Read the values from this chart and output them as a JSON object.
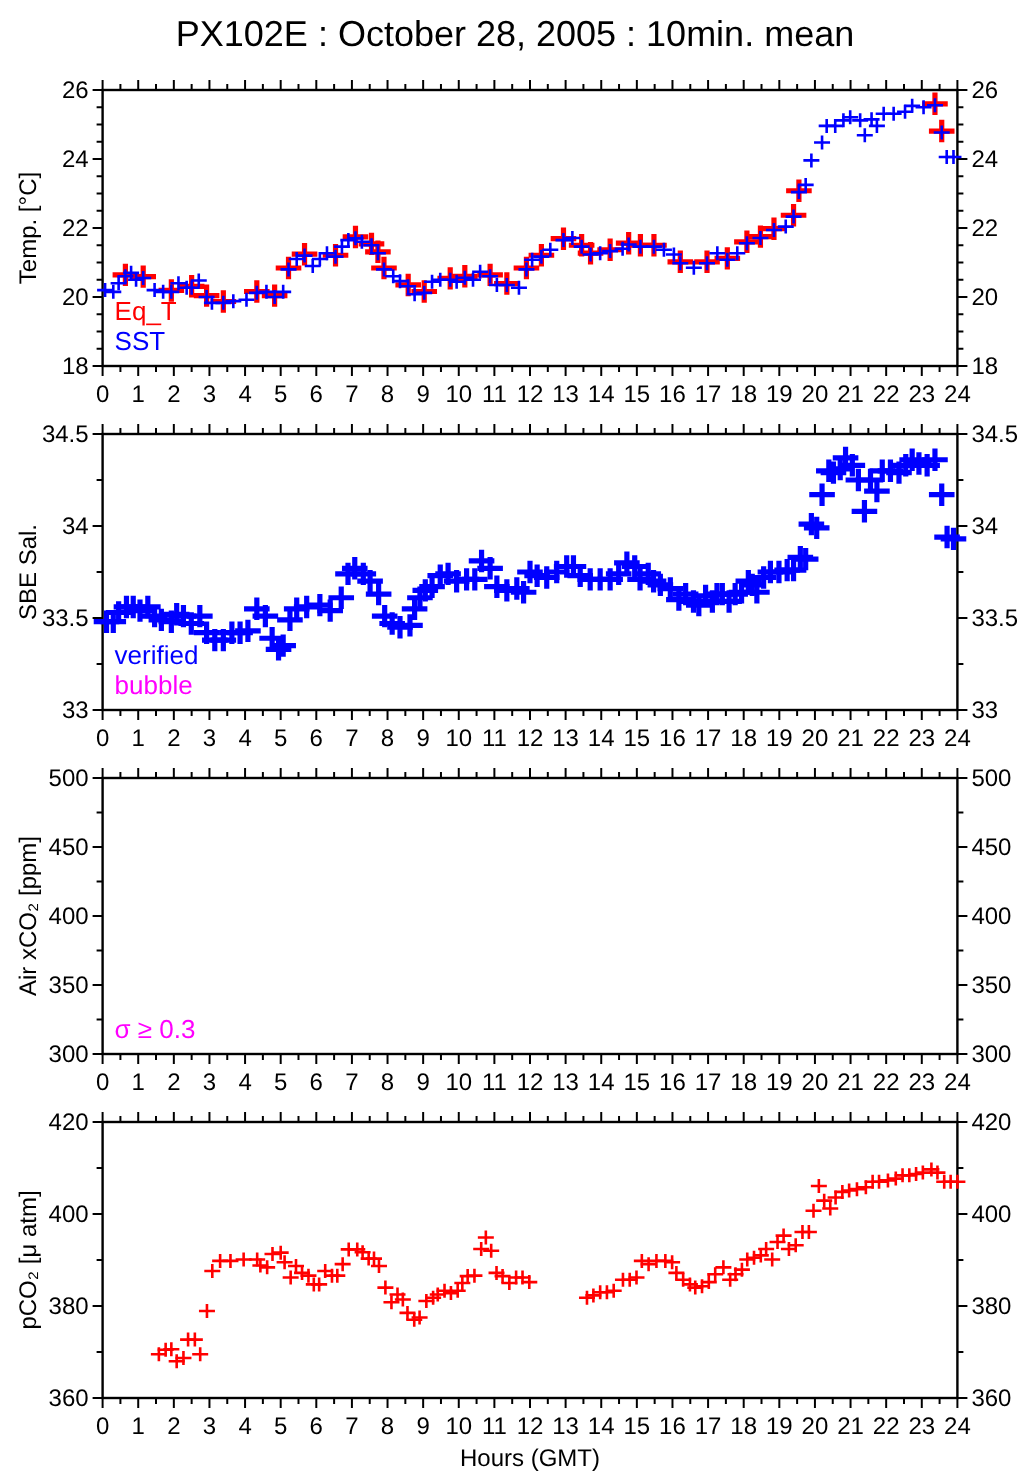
{
  "chart_data": [
    {
      "type": "scatter",
      "title": "PX102E : October 28, 2005 : 10min. mean",
      "ylabel": "Temp. [°C]",
      "marker": "cross",
      "legend": "bottom left",
      "xlim": [
        0,
        24
      ],
      "xticks": [
        0,
        {
          "value": 0.5,
          "label": null
        },
        1,
        {
          "value": 1.5,
          "label": null
        },
        2,
        {
          "value": 2.5,
          "label": null
        },
        3,
        {
          "value": 3.5,
          "label": null
        },
        4,
        {
          "value": 4.5,
          "label": null
        },
        5,
        {
          "value": 5.5,
          "label": null
        },
        6,
        {
          "value": 6.5,
          "label": null
        },
        7,
        {
          "value": 7.5,
          "label": null
        },
        8,
        {
          "value": 8.5,
          "label": null
        },
        9,
        {
          "value": 9.5,
          "label": null
        },
        10,
        {
          "value": 10.5,
          "label": null
        },
        11,
        {
          "value": 11.5,
          "label": null
        },
        12,
        {
          "value": 12.5,
          "label": null
        },
        13,
        {
          "value": 13.5,
          "label": null
        },
        14,
        {
          "value": 14.5,
          "label": null
        },
        15,
        {
          "value": 15.5,
          "label": null
        },
        16,
        {
          "value": 16.5,
          "label": null
        },
        17,
        {
          "value": 17.5,
          "label": null
        },
        18,
        {
          "value": 18.5,
          "label": null
        },
        19,
        {
          "value": 19.5,
          "label": null
        },
        20,
        {
          "value": 20.5,
          "label": null
        },
        21,
        {
          "value": 21.5,
          "label": null
        },
        22,
        {
          "value": 22.5,
          "label": null
        },
        23,
        {
          "value": 23.5,
          "label": null
        },
        24
      ],
      "ylim": [
        18,
        26
      ],
      "yticks": [
        18,
        {
          "value": 18.5,
          "label": null
        },
        {
          "value": 19,
          "label": null
        },
        {
          "value": 19.5,
          "label": null
        },
        20,
        {
          "value": 20.5,
          "label": null
        },
        {
          "value": 21,
          "label": null
        },
        {
          "value": 21.5,
          "label": null
        },
        22,
        {
          "value": 22.5,
          "label": null
        },
        {
          "value": 23,
          "label": null
        },
        {
          "value": 23.5,
          "label": null
        },
        24,
        {
          "value": 24.5,
          "label": null
        },
        {
          "value": 25,
          "label": null
        },
        {
          "value": 25.5,
          "label": null
        },
        26
      ],
      "y2lim": [
        18,
        26
      ],
      "y2ticks": [
        18,
        {
          "value": 18.5,
          "label": null
        },
        {
          "value": 19,
          "label": null
        },
        {
          "value": 19.5,
          "label": null
        },
        20,
        {
          "value": 20.5,
          "label": null
        },
        {
          "value": 21,
          "label": null
        },
        {
          "value": 21.5,
          "label": null
        },
        22,
        {
          "value": 22.5,
          "label": null
        },
        {
          "value": 23,
          "label": null
        },
        {
          "value": 23.5,
          "label": null
        },
        24,
        {
          "value": 24.5,
          "label": null
        },
        {
          "value": 25,
          "label": null
        },
        {
          "value": 25.5,
          "label": null
        },
        26
      ],
      "series": [
        {
          "name": "Eq_T",
          "color": "#ff0000",
          "x": [
            0.64,
            1.14,
            1.93,
            2.5,
            2.92,
            3.39,
            4.33,
            4.83,
            5.22,
            5.67,
            6.54,
            7.1,
            7.55,
            7.73,
            7.9,
            8.58,
            9.03,
            9.76,
            10.17,
            10.88,
            11.35,
            11.9,
            12.32,
            12.94,
            13.45,
            13.7,
            14.25,
            14.77,
            15.1,
            15.48,
            16.22,
            16.97,
            17.54,
            18.09,
            18.47,
            18.85,
            19.4,
            19.55,
            23.37,
            23.56
          ],
          "values": [
            20.64,
            20.59,
            20.19,
            20.31,
            20.04,
            19.87,
            20.16,
            20.04,
            20.84,
            21.24,
            21.21,
            21.74,
            21.54,
            21.31,
            20.84,
            20.35,
            20.16,
            20.54,
            20.6,
            20.64,
            20.39,
            20.84,
            21.21,
            21.69,
            21.5,
            21.27,
            21.37,
            21.56,
            21.5,
            21.5,
            21.02,
            21.02,
            21.12,
            21.6,
            21.75,
            21.98,
            22.37,
            23.08,
            25.6,
            24.81
          ]
        },
        {
          "name": "SST",
          "color": "#0000ff",
          "x": [
            0.07,
            0.3,
            0.45,
            0.64,
            0.8,
            0.94,
            1.14,
            1.46,
            1.7,
            1.93,
            2.13,
            2.36,
            2.5,
            2.7,
            2.92,
            3.07,
            3.39,
            3.67,
            4.04,
            4.33,
            4.6,
            4.83,
            5.07,
            5.22,
            5.45,
            5.67,
            5.9,
            6.1,
            6.3,
            6.54,
            6.72,
            6.9,
            7.1,
            7.28,
            7.55,
            7.73,
            7.9,
            8.16,
            8.35,
            8.58,
            8.76,
            9.03,
            9.25,
            9.48,
            9.76,
            9.94,
            10.17,
            10.4,
            10.6,
            10.88,
            11.07,
            11.35,
            11.69,
            11.9,
            12.06,
            12.32,
            12.57,
            12.94,
            13.19,
            13.45,
            13.7,
            13.97,
            14.25,
            14.6,
            14.77,
            15.1,
            15.48,
            15.76,
            16.04,
            16.22,
            16.6,
            16.97,
            17.26,
            17.54,
            17.82,
            18.09,
            18.47,
            18.85,
            19.18,
            19.4,
            19.55,
            19.74,
            19.9,
            20.2,
            20.33,
            20.57,
            20.8,
            20.99,
            21.27,
            21.4,
            21.59,
            21.74,
            21.93,
            22.21,
            22.53,
            22.73,
            23.05,
            23.37,
            23.56,
            23.7,
            23.89
          ],
          "values": [
            20.2,
            20.15,
            20.4,
            20.6,
            20.7,
            20.5,
            20.55,
            20.2,
            20.15,
            20.15,
            20.4,
            20.27,
            20.27,
            20.48,
            20.0,
            19.83,
            19.83,
            19.88,
            19.92,
            20.12,
            20.15,
            20.0,
            20.15,
            20.8,
            21.1,
            21.2,
            20.9,
            21.1,
            21.27,
            21.17,
            21.46,
            21.65,
            21.7,
            21.6,
            21.5,
            21.27,
            20.8,
            20.6,
            20.46,
            20.31,
            20.08,
            20.12,
            20.44,
            20.5,
            20.5,
            20.44,
            20.56,
            20.5,
            20.73,
            20.6,
            20.35,
            20.35,
            20.27,
            20.8,
            21.08,
            21.17,
            21.37,
            21.65,
            21.71,
            21.46,
            21.23,
            21.27,
            21.33,
            21.4,
            21.52,
            21.46,
            21.46,
            21.37,
            21.23,
            20.98,
            20.85,
            20.98,
            21.27,
            21.08,
            21.27,
            21.56,
            21.71,
            21.94,
            22.04,
            22.33,
            23.04,
            23.25,
            23.96,
            24.48,
            24.96,
            24.96,
            25.12,
            25.21,
            25.12,
            24.69,
            25.15,
            24.96,
            25.31,
            25.31,
            25.37,
            25.54,
            25.5,
            25.56,
            24.77,
            24.06,
            24.06
          ]
        }
      ]
    },
    {
      "type": "scatter",
      "ylabel": "SBE Sal.",
      "marker": "cross",
      "legend": "bottom left",
      "xlim": [
        0,
        24
      ],
      "xticks": [
        0,
        {
          "value": 0.5,
          "label": null
        },
        1,
        {
          "value": 1.5,
          "label": null
        },
        2,
        {
          "value": 2.5,
          "label": null
        },
        3,
        {
          "value": 3.5,
          "label": null
        },
        4,
        {
          "value": 4.5,
          "label": null
        },
        5,
        {
          "value": 5.5,
          "label": null
        },
        6,
        {
          "value": 6.5,
          "label": null
        },
        7,
        {
          "value": 7.5,
          "label": null
        },
        8,
        {
          "value": 8.5,
          "label": null
        },
        9,
        {
          "value": 9.5,
          "label": null
        },
        10,
        {
          "value": 10.5,
          "label": null
        },
        11,
        {
          "value": 11.5,
          "label": null
        },
        12,
        {
          "value": 12.5,
          "label": null
        },
        13,
        {
          "value": 13.5,
          "label": null
        },
        14,
        {
          "value": 14.5,
          "label": null
        },
        15,
        {
          "value": 15.5,
          "label": null
        },
        16,
        {
          "value": 16.5,
          "label": null
        },
        17,
        {
          "value": 17.5,
          "label": null
        },
        18,
        {
          "value": 18.5,
          "label": null
        },
        19,
        {
          "value": 19.5,
          "label": null
        },
        20,
        {
          "value": 20.5,
          "label": null
        },
        21,
        {
          "value": 21.5,
          "label": null
        },
        22,
        {
          "value": 22.5,
          "label": null
        },
        23,
        {
          "value": 23.5,
          "label": null
        },
        24
      ],
      "ylim": [
        33,
        34.5
      ],
      "yticks": [
        33,
        {
          "value": 33.25,
          "label": null
        },
        33.5,
        {
          "value": 33.75,
          "label": null
        },
        34,
        {
          "value": 34.25,
          "label": null
        },
        34.5
      ],
      "y2lim": [
        33,
        34.5
      ],
      "y2ticks": [
        33,
        {
          "value": 33.25,
          "label": null
        },
        33.5,
        {
          "value": 33.75,
          "label": null
        },
        34,
        {
          "value": 34.25,
          "label": null
        },
        34.5
      ],
      "series": [
        {
          "name": "verified",
          "color": "#0000ff",
          "x": [
            0.11,
            0.3,
            0.45,
            0.67,
            0.86,
            1.05,
            1.27,
            1.46,
            1.65,
            1.93,
            2.08,
            2.27,
            2.49,
            2.73,
            2.92,
            3.15,
            3.39,
            3.63,
            3.86,
            4.08,
            4.33,
            4.57,
            4.76,
            4.94,
            5.07,
            5.26,
            5.45,
            5.73,
            6.1,
            6.39,
            6.7,
            6.89,
            7.08,
            7.32,
            7.51,
            7.75,
            7.92,
            8.13,
            8.35,
            8.63,
            8.76,
            8.91,
            9.06,
            9.25,
            9.48,
            9.7,
            9.94,
            10.22,
            10.45,
            10.64,
            10.88,
            11.07,
            11.35,
            11.63,
            11.82,
            12.0,
            12.2,
            12.47,
            12.75,
            13.03,
            13.22,
            13.41,
            13.69,
            13.97,
            14.25,
            14.49,
            14.72,
            14.94,
            15.09,
            15.32,
            15.47,
            15.66,
            15.94,
            16.18,
            16.37,
            16.59,
            16.74,
            16.93,
            17.12,
            17.25,
            17.4,
            17.59,
            17.76,
            17.94,
            18.13,
            18.24,
            18.37,
            18.56,
            18.75,
            18.99,
            19.22,
            19.4,
            19.59,
            19.74,
            19.9,
            20.05,
            20.2,
            20.39,
            20.52,
            20.71,
            20.86,
            21.05,
            21.22,
            21.39,
            21.56,
            21.74,
            21.89,
            22.12,
            22.36,
            22.55,
            22.73,
            22.92,
            23.15,
            23.37,
            23.56,
            23.71,
            23.89
          ],
          "values": [
            33.48,
            33.48,
            33.53,
            33.56,
            33.56,
            33.54,
            33.56,
            33.51,
            33.49,
            33.48,
            33.52,
            33.51,
            33.47,
            33.51,
            33.42,
            33.38,
            33.38,
            33.42,
            33.42,
            33.43,
            33.55,
            33.51,
            33.39,
            33.33,
            33.35,
            33.49,
            33.55,
            33.56,
            33.57,
            33.54,
            33.61,
            33.74,
            33.77,
            33.74,
            33.7,
            33.63,
            33.51,
            33.47,
            33.45,
            33.46,
            33.55,
            33.61,
            33.65,
            33.67,
            33.73,
            33.74,
            33.7,
            33.71,
            33.71,
            33.81,
            33.77,
            33.67,
            33.65,
            33.66,
            33.64,
            33.75,
            33.73,
            33.72,
            33.75,
            33.78,
            33.78,
            33.73,
            33.71,
            33.71,
            33.71,
            33.74,
            33.8,
            33.78,
            33.71,
            33.74,
            33.7,
            33.68,
            33.66,
            33.6,
            33.63,
            33.59,
            33.57,
            33.62,
            33.59,
            33.63,
            33.63,
            33.59,
            33.63,
            33.64,
            33.7,
            33.68,
            33.64,
            33.72,
            33.75,
            33.75,
            33.76,
            33.76,
            33.83,
            33.82,
            34.01,
            33.99,
            34.17,
            34.3,
            34.29,
            34.31,
            34.37,
            34.33,
            34.25,
            34.08,
            34.25,
            34.19,
            34.3,
            34.3,
            34.29,
            34.33,
            34.36,
            34.34,
            34.33,
            34.36,
            34.17,
            33.94,
            33.93
          ]
        },
        {
          "name": "bubble",
          "color": "#ff00ff"
        }
      ]
    },
    {
      "type": "scatter",
      "ylabel": "Air xCO₂ [ppm]",
      "xlim": [
        0,
        24
      ],
      "xticks": [
        0,
        {
          "value": 0.5,
          "label": null
        },
        1,
        {
          "value": 1.5,
          "label": null
        },
        2,
        {
          "value": 2.5,
          "label": null
        },
        3,
        {
          "value": 3.5,
          "label": null
        },
        4,
        {
          "value": 4.5,
          "label": null
        },
        5,
        {
          "value": 5.5,
          "label": null
        },
        6,
        {
          "value": 6.5,
          "label": null
        },
        7,
        {
          "value": 7.5,
          "label": null
        },
        8,
        {
          "value": 8.5,
          "label": null
        },
        9,
        {
          "value": 9.5,
          "label": null
        },
        10,
        {
          "value": 10.5,
          "label": null
        },
        11,
        {
          "value": 11.5,
          "label": null
        },
        12,
        {
          "value": 12.5,
          "label": null
        },
        13,
        {
          "value": 13.5,
          "label": null
        },
        14,
        {
          "value": 14.5,
          "label": null
        },
        15,
        {
          "value": 15.5,
          "label": null
        },
        16,
        {
          "value": 16.5,
          "label": null
        },
        17,
        {
          "value": 17.5,
          "label": null
        },
        18,
        {
          "value": 18.5,
          "label": null
        },
        19,
        {
          "value": 19.5,
          "label": null
        },
        20,
        {
          "value": 20.5,
          "label": null
        },
        21,
        {
          "value": 21.5,
          "label": null
        },
        22,
        {
          "value": 22.5,
          "label": null
        },
        23,
        {
          "value": 23.5,
          "label": null
        },
        24
      ],
      "ylim": [
        300,
        500
      ],
      "yticks": [
        300,
        {
          "value": 325,
          "label": null
        },
        350,
        {
          "value": 375,
          "label": null
        },
        400,
        {
          "value": 425,
          "label": null
        },
        450,
        {
          "value": 475,
          "label": null
        },
        500
      ],
      "y2lim": [
        300,
        500
      ],
      "y2ticks": [
        300,
        {
          "value": 325,
          "label": null
        },
        350,
        {
          "value": 375,
          "label": null
        },
        400,
        {
          "value": 425,
          "label": null
        },
        450,
        {
          "value": 475,
          "label": null
        },
        500
      ],
      "annotations": [
        "σ ≥ 0.3"
      ]
    },
    {
      "type": "scatter",
      "ylabel": "pCO₂ [μ atm]",
      "xlabel": "Hours (GMT)",
      "marker": "cross",
      "xlim": [
        0,
        24
      ],
      "xticks": [
        0,
        {
          "value": 0.5,
          "label": null
        },
        1,
        {
          "value": 1.5,
          "label": null
        },
        2,
        {
          "value": 2.5,
          "label": null
        },
        3,
        {
          "value": 3.5,
          "label": null
        },
        4,
        {
          "value": 4.5,
          "label": null
        },
        5,
        {
          "value": 5.5,
          "label": null
        },
        6,
        {
          "value": 6.5,
          "label": null
        },
        7,
        {
          "value": 7.5,
          "label": null
        },
        8,
        {
          "value": 8.5,
          "label": null
        },
        9,
        {
          "value": 9.5,
          "label": null
        },
        10,
        {
          "value": 10.5,
          "label": null
        },
        11,
        {
          "value": 11.5,
          "label": null
        },
        12,
        {
          "value": 12.5,
          "label": null
        },
        13,
        {
          "value": 13.5,
          "label": null
        },
        14,
        {
          "value": 14.5,
          "label": null
        },
        15,
        {
          "value": 15.5,
          "label": null
        },
        16,
        {
          "value": 16.5,
          "label": null
        },
        17,
        {
          "value": 17.5,
          "label": null
        },
        18,
        {
          "value": 18.5,
          "label": null
        },
        19,
        {
          "value": 19.5,
          "label": null
        },
        20,
        {
          "value": 20.5,
          "label": null
        },
        21,
        {
          "value": 21.5,
          "label": null
        },
        22,
        {
          "value": 22.5,
          "label": null
        },
        23,
        {
          "value": 23.5,
          "label": null
        },
        24
      ],
      "ylim": [
        360,
        420
      ],
      "yticks": [
        360,
        {
          "value": 370,
          "label": null
        },
        380,
        {
          "value": 390,
          "label": null
        },
        400,
        {
          "value": 410,
          "label": null
        },
        420
      ],
      "y2lim": [
        360,
        420
      ],
      "y2ticks": [
        360,
        {
          "value": 370,
          "label": null
        },
        380,
        {
          "value": 390,
          "label": null
        },
        400,
        {
          "value": 410,
          "label": null
        },
        420
      ],
      "series": [
        {
          "color": "#ff0000",
          "x": [
            1.58,
            1.77,
            1.93,
            2.08,
            2.27,
            2.4,
            2.59,
            2.74,
            2.93,
            3.08,
            3.3,
            3.59,
            3.96,
            4.34,
            4.43,
            4.62,
            4.77,
            5.0,
            5.11,
            5.28,
            5.43,
            5.6,
            5.78,
            5.93,
            6.08,
            6.25,
            6.44,
            6.59,
            6.74,
            6.91,
            7.15,
            7.3,
            7.47,
            7.62,
            7.76,
            7.94,
            8.11,
            8.28,
            8.43,
            8.56,
            8.75,
            8.9,
            9.09,
            9.28,
            9.41,
            9.6,
            9.78,
            9.97,
            10.1,
            10.25,
            10.44,
            10.63,
            10.76,
            10.91,
            11.06,
            11.23,
            11.42,
            11.61,
            11.79,
            11.98,
            13.6,
            13.78,
            13.97,
            14.16,
            14.35,
            14.61,
            14.8,
            14.99,
            15.14,
            15.33,
            15.55,
            15.8,
            15.99,
            16.11,
            16.3,
            16.49,
            16.64,
            16.83,
            17.02,
            17.2,
            17.43,
            17.62,
            17.77,
            17.95,
            18.1,
            18.29,
            18.48,
            18.63,
            18.8,
            18.95,
            19.12,
            19.27,
            19.46,
            19.65,
            19.83,
            19.96,
            20.11,
            20.26,
            20.43,
            20.58,
            20.77,
            20.96,
            21.18,
            21.43,
            21.62,
            21.8,
            22.05,
            22.27,
            22.46,
            22.65,
            22.84,
            23.03,
            23.27,
            23.44,
            23.63,
            23.81,
            24.0
          ],
          "values": [
            369.5,
            370.5,
            370.6,
            368,
            368.7,
            372.7,
            372.7,
            369.5,
            378.9,
            387.6,
            389.8,
            389.8,
            390.1,
            390.1,
            388.8,
            388.4,
            391.3,
            391.6,
            389.5,
            386.2,
            388.7,
            387.2,
            386.6,
            384.7,
            384.7,
            387.6,
            386.6,
            386.6,
            389.1,
            392.3,
            392.3,
            391.7,
            390.3,
            390.3,
            388.7,
            384,
            380.8,
            382.5,
            381.4,
            378.5,
            377,
            377.5,
            381.1,
            381.8,
            382.5,
            383.3,
            382.8,
            383.3,
            385,
            386.5,
            386.6,
            392.4,
            394.9,
            392,
            387.2,
            386.5,
            385,
            386.2,
            386.2,
            385.2,
            381.8,
            382.3,
            383,
            383,
            383.3,
            385.7,
            385.7,
            386.2,
            389.8,
            389.1,
            389.8,
            389.8,
            389.5,
            387.2,
            385.7,
            384.7,
            384,
            384.3,
            385.2,
            386.9,
            388.4,
            385.7,
            386.9,
            387.9,
            390.1,
            390.5,
            391,
            392.4,
            390.1,
            393.9,
            395.3,
            392.4,
            393.2,
            396.1,
            396.1,
            400.7,
            406.1,
            402.9,
            401.2,
            403.6,
            404.8,
            405.1,
            405.4,
            405.8,
            407,
            407,
            407.3,
            407.7,
            408.4,
            408.4,
            408.7,
            409,
            409.7,
            409,
            407,
            407,
            407
          ]
        }
      ]
    }
  ]
}
